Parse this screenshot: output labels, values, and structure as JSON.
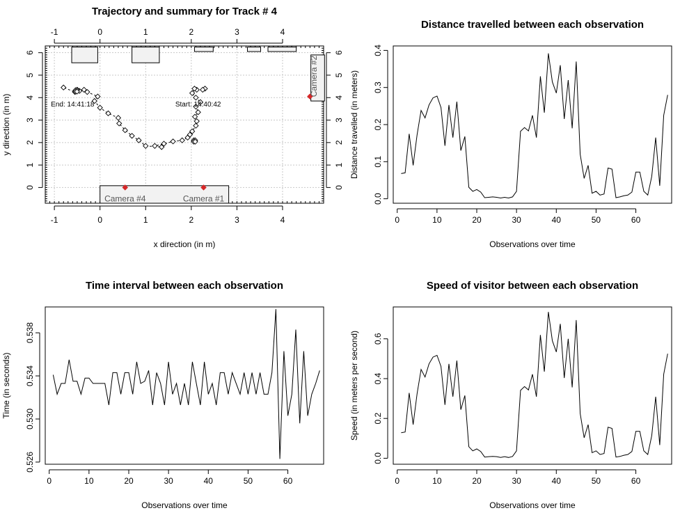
{
  "chart_data": [
    {
      "type": "scatter",
      "title": "Trajectory and summary for Track # 4",
      "xlabel": "x direction (in m)",
      "ylabel": "y direction (in m)",
      "xlim": [
        -1.2,
        4.9
      ],
      "ylim": [
        -0.7,
        6.3
      ],
      "xticks": [
        -1,
        0,
        1,
        2,
        3,
        4
      ],
      "yticks": [
        0,
        1,
        2,
        3,
        4,
        5,
        6
      ],
      "grid": true,
      "points": [
        [
          2.12,
          4.35
        ],
        [
          2.07,
          4.4
        ],
        [
          2.02,
          4.2
        ],
        [
          2.1,
          4.0
        ],
        [
          2.2,
          3.8
        ],
        [
          2.1,
          3.6
        ],
        [
          2.15,
          3.35
        ],
        [
          2.08,
          3.15
        ],
        [
          2.12,
          2.95
        ],
        [
          2.1,
          2.75
        ],
        [
          2.02,
          2.5
        ],
        [
          1.97,
          2.35
        ],
        [
          1.92,
          2.22
        ],
        [
          1.8,
          2.1
        ],
        [
          1.6,
          2.05
        ],
        [
          1.4,
          1.95
        ],
        [
          1.2,
          1.85
        ],
        [
          1.35,
          1.8
        ],
        [
          1.0,
          1.85
        ],
        [
          0.85,
          2.1
        ],
        [
          0.7,
          2.3
        ],
        [
          0.55,
          2.55
        ],
        [
          0.42,
          2.85
        ],
        [
          0.4,
          3.1
        ],
        [
          0.18,
          3.3
        ],
        [
          0.0,
          3.55
        ],
        [
          -0.12,
          3.85
        ],
        [
          -0.05,
          4.05
        ],
        [
          -0.28,
          4.25
        ],
        [
          -0.35,
          4.35
        ],
        [
          -0.45,
          4.3
        ],
        [
          -0.5,
          4.35
        ],
        [
          -0.55,
          4.25
        ],
        [
          -0.8,
          4.45
        ],
        [
          2.3,
          4.4
        ],
        [
          2.25,
          4.35
        ]
      ],
      "cluster_points": [
        [
          -0.52,
          4.3
        ],
        [
          2.07,
          2.07
        ]
      ],
      "start_label": "Start: 14:40:42",
      "end_label": "End: 14:41:18",
      "boxes": [
        {
          "x": [
            -0.62,
            -0.05
          ],
          "y": [
            5.55,
            6.25
          ]
        },
        {
          "x": [
            0.7,
            1.3
          ],
          "y": [
            5.55,
            6.25
          ]
        },
        {
          "x": [
            2.07,
            2.48
          ],
          "y": [
            6.05,
            6.25
          ]
        },
        {
          "x": [
            3.23,
            3.52
          ],
          "y": [
            6.05,
            6.25
          ]
        },
        {
          "x": [
            3.68,
            4.3
          ],
          "y": [
            6.05,
            6.25
          ]
        },
        {
          "x": [
            4.62,
            4.92
          ],
          "y": [
            3.85,
            5.9
          ]
        },
        {
          "x": [
            0.0,
            2.82
          ],
          "y": [
            -0.7,
            0.08
          ]
        }
      ],
      "cameras": [
        {
          "label": "Camera #4",
          "x": 0.55,
          "y": 0.0
        },
        {
          "label": "Camera #1",
          "x": 2.27,
          "y": 0.0
        },
        {
          "label": "Camera #2",
          "x": 4.6,
          "y": 4.05
        }
      ]
    },
    {
      "type": "line",
      "title": "Distance travelled between each observation",
      "xlabel": "Observations over time",
      "ylabel": "Distance travelled (in meters)",
      "xlim": [
        -1,
        69
      ],
      "ylim": [
        -0.012,
        0.412
      ],
      "xticks": [
        0,
        10,
        20,
        30,
        40,
        50,
        60
      ],
      "yticks": [
        0.0,
        0.1,
        0.2,
        0.3,
        0.4
      ],
      "x_start": 1,
      "values": [
        0.068,
        0.07,
        0.175,
        0.09,
        0.173,
        0.238,
        0.218,
        0.253,
        0.272,
        0.277,
        0.246,
        0.143,
        0.253,
        0.165,
        0.262,
        0.13,
        0.168,
        0.031,
        0.02,
        0.025,
        0.018,
        0.003,
        0.004,
        0.005,
        0.004,
        0.002,
        0.004,
        0.002,
        0.005,
        0.02,
        0.182,
        0.192,
        0.183,
        0.225,
        0.165,
        0.33,
        0.232,
        0.392,
        0.315,
        0.285,
        0.36,
        0.215,
        0.32,
        0.19,
        0.37,
        0.12,
        0.055,
        0.09,
        0.015,
        0.02,
        0.01,
        0.013,
        0.083,
        0.08,
        0.003,
        0.005,
        0.008,
        0.01,
        0.018,
        0.072,
        0.072,
        0.02,
        0.01,
        0.06,
        0.165,
        0.035,
        0.225,
        0.28
      ]
    },
    {
      "type": "line",
      "title": "Time interval between each observation",
      "xlabel": "Observations over time",
      "ylabel": "Time (in seconds)",
      "xlim": [
        -1,
        69
      ],
      "ylim": [
        0.5258,
        0.5404
      ],
      "xticks": [
        0,
        10,
        20,
        30,
        40,
        50,
        60
      ],
      "yticks": [
        0.526,
        0.53,
        0.534,
        0.538
      ],
      "x_start": 1,
      "values": [
        0.5341,
        0.5323,
        0.5333,
        0.5333,
        0.5355,
        0.5335,
        0.5335,
        0.5323,
        0.5338,
        0.5338,
        0.5333,
        0.5333,
        0.5333,
        0.5333,
        0.5313,
        0.5343,
        0.5343,
        0.5323,
        0.5343,
        0.5343,
        0.5323,
        0.5353,
        0.5333,
        0.5335,
        0.5345,
        0.5313,
        0.5343,
        0.5333,
        0.5313,
        0.5353,
        0.5323,
        0.5333,
        0.5313,
        0.5333,
        0.5313,
        0.5353,
        0.5333,
        0.5313,
        0.5353,
        0.5323,
        0.5333,
        0.5313,
        0.5343,
        0.5343,
        0.5323,
        0.5343,
        0.5333,
        0.5323,
        0.5343,
        0.5323,
        0.5343,
        0.5323,
        0.5343,
        0.5323,
        0.5323,
        0.5343,
        0.5402,
        0.5263,
        0.5363,
        0.5303,
        0.5323,
        0.5383,
        0.5296,
        0.5363,
        0.5303,
        0.5323,
        0.5333,
        0.5345
      ]
    },
    {
      "type": "line",
      "title": "Speed of visitor between each observation",
      "xlabel": "Observations over time",
      "ylabel": "Speed (in meters per second)",
      "xlim": [
        -1,
        69
      ],
      "ylim": [
        -0.03,
        0.76
      ],
      "xticks": [
        0,
        10,
        20,
        30,
        40,
        50,
        60
      ],
      "yticks": [
        0.0,
        0.2,
        0.4,
        0.6
      ],
      "x_start": 1,
      "values": [
        0.128,
        0.132,
        0.328,
        0.169,
        0.325,
        0.446,
        0.408,
        0.474,
        0.508,
        0.517,
        0.461,
        0.268,
        0.474,
        0.309,
        0.491,
        0.244,
        0.315,
        0.058,
        0.037,
        0.047,
        0.034,
        0.006,
        0.008,
        0.009,
        0.008,
        0.004,
        0.008,
        0.004,
        0.009,
        0.037,
        0.341,
        0.36,
        0.343,
        0.422,
        0.309,
        0.619,
        0.435,
        0.735,
        0.59,
        0.534,
        0.675,
        0.403,
        0.6,
        0.356,
        0.694,
        0.225,
        0.103,
        0.169,
        0.028,
        0.037,
        0.019,
        0.024,
        0.156,
        0.15,
        0.006,
        0.009,
        0.015,
        0.019,
        0.034,
        0.135,
        0.135,
        0.037,
        0.019,
        0.113,
        0.309,
        0.066,
        0.422,
        0.525
      ]
    }
  ]
}
